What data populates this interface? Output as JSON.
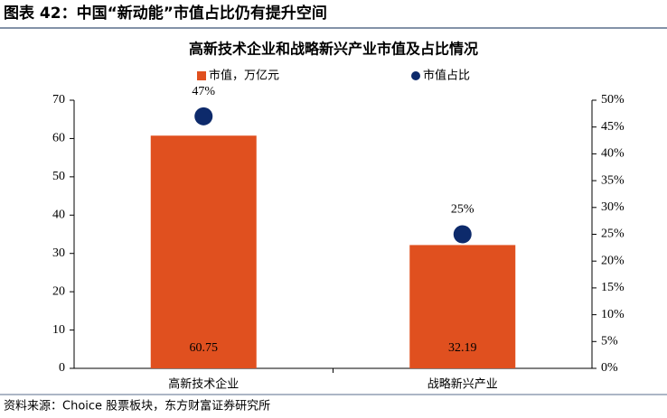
{
  "header": {
    "title": "图表 42：中国“新动能”市值占比仍有提升空间"
  },
  "chart_data": {
    "type": "bar",
    "title": "高新技术企业和战略新兴产业市值及占比情况",
    "categories": [
      "高新技术企业",
      "战略新兴产业"
    ],
    "series": [
      {
        "name": "市值，万亿元",
        "type": "bar",
        "color": "#e0501f",
        "values": [
          60.75,
          32.19
        ]
      },
      {
        "name": "市值占比",
        "type": "scatter",
        "axis": "y2",
        "color": "#0d2a6b",
        "values": [
          47,
          25
        ],
        "value_labels": [
          "47%",
          "25%"
        ]
      }
    ],
    "ylim": [
      0,
      70
    ],
    "yticks": [
      0,
      10,
      20,
      30,
      40,
      50,
      60,
      70
    ],
    "y2lim": [
      0,
      50
    ],
    "y2ticks": [
      {
        "value": 0,
        "label": "0%"
      },
      {
        "value": 5,
        "label": "5%"
      },
      {
        "value": 10,
        "label": "10%"
      },
      {
        "value": 15,
        "label": "15%"
      },
      {
        "value": 20,
        "label": "20%"
      },
      {
        "value": 25,
        "label": "25%"
      },
      {
        "value": 30,
        "label": "30%"
      },
      {
        "value": 35,
        "label": "35%"
      },
      {
        "value": 40,
        "label": "40%"
      },
      {
        "value": 45,
        "label": "45%"
      },
      {
        "value": 50,
        "label": "50%"
      }
    ],
    "grid": false,
    "legend": "top"
  },
  "footer": {
    "source": "资料来源：Choice 股票板块，东方财富证券研究所"
  }
}
